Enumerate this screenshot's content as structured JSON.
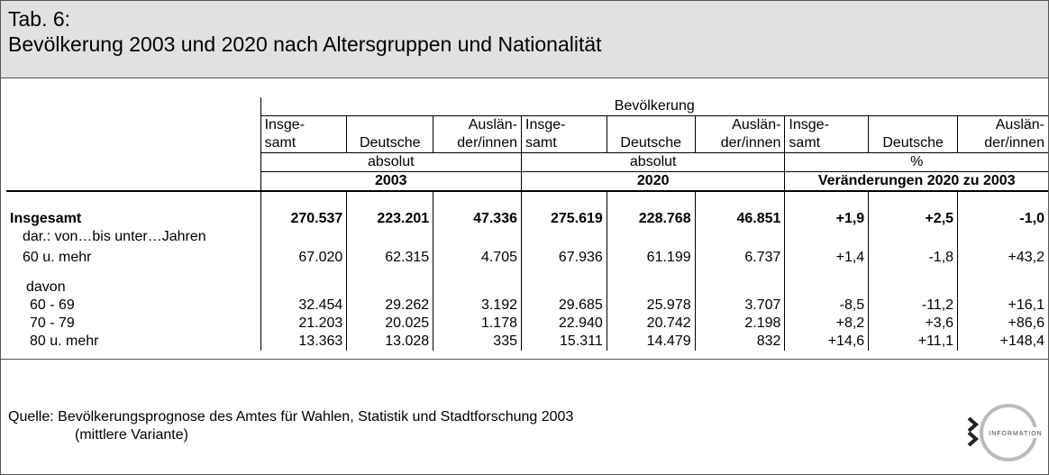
{
  "header": {
    "tab": "Tab. 6:",
    "title": "Bevölkerung 2003 und 2020 nach Altersgruppen und Nationalität"
  },
  "table": {
    "group_header": "Bevölkerung",
    "columns": [
      [
        "Insge-",
        "samt"
      ],
      [
        "",
        "Deutsche"
      ],
      [
        "Auslän-",
        "der/innen"
      ],
      [
        "Insge-",
        "samt"
      ],
      [
        "",
        "Deutsche"
      ],
      [
        "Auslän-",
        "der/innen"
      ],
      [
        "Insge-",
        "samt"
      ],
      [
        "",
        "Deutsche"
      ],
      [
        "Auslän-",
        "der/innen"
      ]
    ],
    "units": [
      "absolut",
      "absolut",
      "%"
    ],
    "periods": [
      "2003",
      "2020",
      "Veränderungen 2020 zu 2003"
    ],
    "rows": [
      {
        "label": "Insgesamt",
        "values": [
          "270.537",
          "223.201",
          "47.336",
          "275.619",
          "228.768",
          "46.851",
          "+1,9",
          "+2,5",
          "-1,0"
        ]
      },
      {
        "label": "dar.: von…bis unter…Jahren",
        "values": []
      },
      {
        "label": "60 u. mehr",
        "values": [
          "67.020",
          "62.315",
          "4.705",
          "67.936",
          "61.199",
          "6.737",
          "+1,4",
          "-1,8",
          "+43,2"
        ]
      },
      {
        "label": "davon",
        "values": []
      },
      {
        "label": "60 - 69",
        "values": [
          "32.454",
          "29.262",
          "3.192",
          "29.685",
          "25.978",
          "3.707",
          "-8,5",
          "-11,2",
          "+16,1"
        ]
      },
      {
        "label": "70 - 79",
        "values": [
          "21.203",
          "20.025",
          "1.178",
          "22.940",
          "20.742",
          "2.198",
          "+8,2",
          "+3,6",
          "+86,6"
        ]
      },
      {
        "label": "80 u. mehr",
        "values": [
          "13.363",
          "13.028",
          "335",
          "15.311",
          "14.479",
          "832",
          "+14,6",
          "+11,1",
          "+148,4"
        ]
      }
    ]
  },
  "footer": {
    "source_label": "Quelle:",
    "source_line1": "Bevölkerungsprognose des Amtes für Wahlen, Statistik und Stadtforschung 2003",
    "source_line2": "(mittlere Variante)",
    "logo_text": "INFORMATION"
  }
}
